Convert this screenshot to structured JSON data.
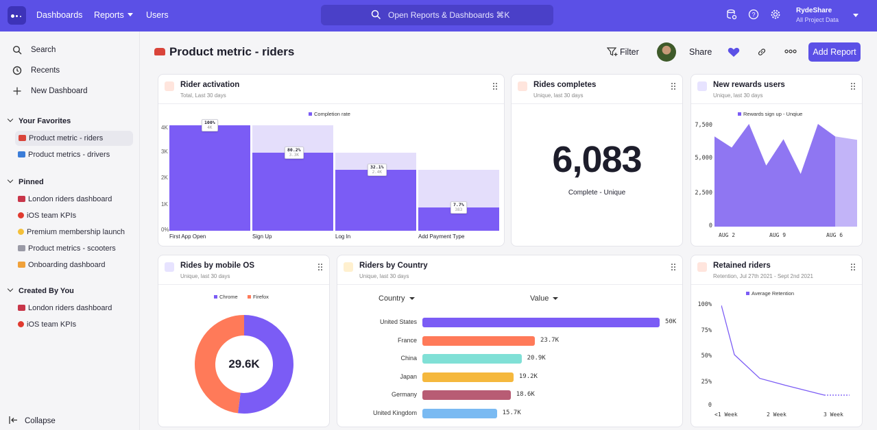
{
  "topbar": {
    "nav": [
      "Dashboards",
      "Reports",
      "Users"
    ],
    "search_placeholder": "Open Reports &  Dashboards ⌘K",
    "account_name": "RydeShare",
    "account_sub": "All Project Data"
  },
  "sidebar": {
    "search": "Search",
    "recents": "Recents",
    "new_dashboard": "New Dashboard",
    "favorites_header": "Your Favorites",
    "favorites": [
      "Product metric - riders",
      "Product metrics - drivers"
    ],
    "pinned_header": "Pinned",
    "pinned": [
      "London riders dashboard",
      "iOS team KPIs",
      "Premium membership launch",
      "Product metrics - scooters",
      "Onboarding dashboard"
    ],
    "created_header": "Created By You",
    "created": [
      "London riders dashboard",
      "iOS team KPIs"
    ],
    "collapse": "Collapse"
  },
  "header": {
    "title": "Product metric - riders",
    "filter": "Filter",
    "share": "Share",
    "add_report": "Add Report"
  },
  "cards": {
    "activation": {
      "title": "Rider activation",
      "subtitle": "Total, Last 30 days",
      "legend": "Completion rate",
      "y_ticks": [
        "4K",
        "3K",
        "2K",
        "1K",
        "0%"
      ]
    },
    "rides": {
      "title": "Rides completes",
      "subtitle": "Unique, last 30 days",
      "value": "6,083",
      "label": "Complete - Unique"
    },
    "rewards": {
      "title": "New rewards users",
      "subtitle": "Unique, last 30 days",
      "legend": "Rewards sign up - Unqiue",
      "y_ticks": [
        "7,500",
        "5,000",
        "2,500",
        "0"
      ],
      "x_ticks": [
        "AUG 2",
        "AUG 9",
        "AUG 6"
      ]
    },
    "os": {
      "title": "Rides by mobile OS",
      "subtitle": "Unique, last 30 days",
      "center": "29.6K"
    },
    "country": {
      "title": "Riders by Country",
      "subtitle": "Unique, last 30 days",
      "col1": "Country",
      "col2": "Value"
    },
    "retained": {
      "title": "Retained riders",
      "subtitle": "Retention, Jul 27th 2021 - Sept 2nd 2021",
      "legend": "Average Retention",
      "y_ticks": [
        "100%",
        "75%",
        "50%",
        "25%",
        "0"
      ],
      "x_ticks": [
        "<1 Week",
        "2 Week",
        "3 Week"
      ]
    }
  },
  "chart_data": [
    {
      "type": "bar",
      "title": "Rider activation",
      "categories": [
        "First App Open",
        "Sign Up",
        "Log In",
        "Add Payment Type"
      ],
      "series": [
        {
          "name": "Completion rate",
          "values": [
            100,
            80.2,
            32.1,
            7.7
          ]
        }
      ],
      "value_labels": [
        "100%",
        "80.2%",
        "32.1%",
        "7.7%"
      ],
      "sub_labels": [
        "4K",
        "3.3K",
        "2.4K",
        "383"
      ],
      "value_fractions": [
        1.0,
        0.74,
        0.58,
        0.22
      ],
      "ylim": [
        0,
        4000
      ],
      "color": "#7b5cf5",
      "ghost_color": "#e4defb"
    },
    {
      "type": "area",
      "title": "New rewards users",
      "series": [
        {
          "name": "Rewards sign up - Unqiue",
          "values": [
            6500,
            5700,
            7400,
            4400,
            6300,
            3800,
            7400,
            6500
          ]
        }
      ],
      "x_ticks": [
        "AUG 2",
        "AUG 9",
        "AUG 6"
      ],
      "ylim": [
        0,
        7500
      ],
      "color": "#8f76f2"
    },
    {
      "type": "pie",
      "title": "Rides by mobile OS",
      "labels": [
        "Chrome",
        "Firefox"
      ],
      "values": [
        52,
        48
      ],
      "colors": [
        "#7b5cf5",
        "#ff7a59"
      ],
      "center": "29.6K"
    },
    {
      "type": "bar",
      "title": "Riders by Country",
      "categories": [
        "United States",
        "France",
        "China",
        "Japan",
        "Germany",
        "United Kingdom"
      ],
      "values": [
        50000,
        23700,
        20900,
        19200,
        18600,
        15700
      ],
      "value_labels": [
        "50K",
        "23.7K",
        "20.9K",
        "19.2K",
        "18.6K",
        "15.7K"
      ],
      "colors": [
        "#7b5cf5",
        "#ff7a59",
        "#80e0d6",
        "#f5b83d",
        "#b85c74",
        "#7abaf2"
      ]
    },
    {
      "type": "line",
      "title": "Retained riders",
      "series": [
        {
          "name": "Average Retention",
          "values": [
            100,
            50,
            26,
            19,
            9,
            9
          ]
        }
      ],
      "x_ticks": [
        "<1 Week",
        "2 Week",
        "3 Week"
      ],
      "ylim": [
        0,
        100
      ],
      "color": "#7b5cf5"
    }
  ]
}
